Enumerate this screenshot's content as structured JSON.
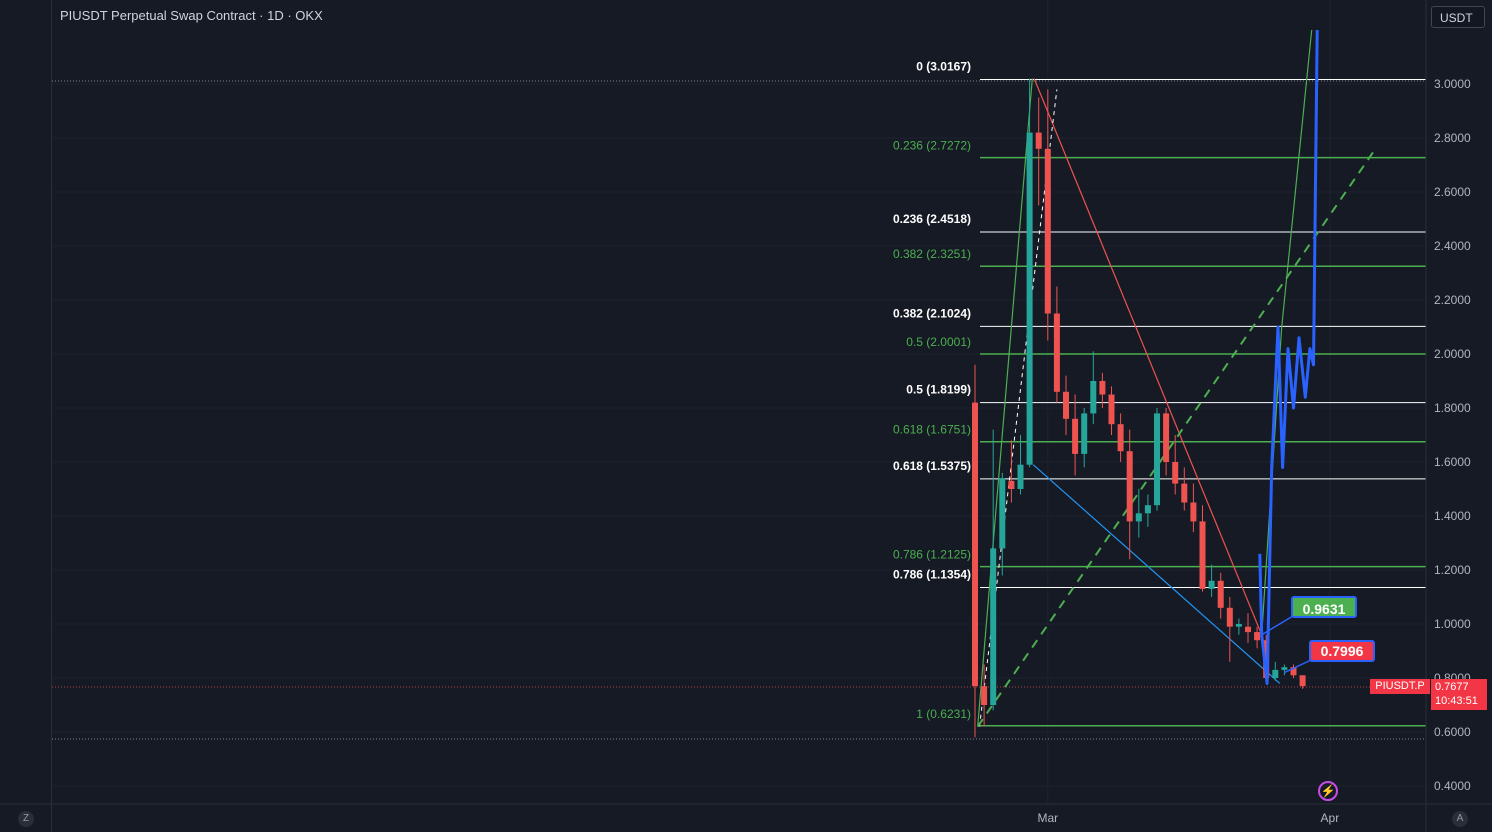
{
  "header": {
    "title": "PIUSDT Perpetual Swap Contract · 1D · OKX",
    "currency": "USDT"
  },
  "corners": {
    "bottom_left": "Z",
    "bottom_right": "A"
  },
  "price_tag": {
    "symbol": "PIUSDT.P",
    "price": "0.7677",
    "countdown": "10:43:51"
  },
  "labels": {
    "green": "0.9631",
    "red": "0.7996"
  },
  "colors": {
    "background": "#161a25",
    "bull": "#26a69a",
    "bear": "#ef5350",
    "fib_green": "#4caf50",
    "fib_white": "#ffffff",
    "blue": "#2962ff"
  },
  "chart_data": {
    "type": "candlestick",
    "ylim": [
      0.35,
      3.1
    ],
    "y_ticks": [
      "0.4000",
      "0.6000",
      "0.8000",
      "1.0000",
      "1.2000",
      "1.4000",
      "1.6000",
      "1.8000",
      "2.0000",
      "2.2000",
      "2.4000",
      "2.6000",
      "2.8000",
      "3.0000"
    ],
    "x_ticks": [
      {
        "label": "Mar",
        "day": 8
      },
      {
        "label": "Apr",
        "day": 39
      }
    ],
    "candles": [
      {
        "o": 1.82,
        "h": 1.96,
        "l": 0.58,
        "c": 0.77
      },
      {
        "o": 0.77,
        "h": 0.85,
        "l": 0.62,
        "c": 0.7
      },
      {
        "o": 0.7,
        "h": 1.72,
        "l": 0.68,
        "c": 1.28
      },
      {
        "o": 1.28,
        "h": 1.56,
        "l": 1.18,
        "c": 1.54
      },
      {
        "o": 1.53,
        "h": 1.68,
        "l": 1.45,
        "c": 1.5
      },
      {
        "o": 1.5,
        "h": 1.7,
        "l": 1.48,
        "c": 1.59
      },
      {
        "o": 1.59,
        "h": 3.02,
        "l": 1.58,
        "c": 2.82
      },
      {
        "o": 2.82,
        "h": 2.95,
        "l": 2.55,
        "c": 2.76
      },
      {
        "o": 2.76,
        "h": 2.98,
        "l": 2.05,
        "c": 2.15
      },
      {
        "o": 2.15,
        "h": 2.25,
        "l": 1.82,
        "c": 1.86
      },
      {
        "o": 1.86,
        "h": 1.92,
        "l": 1.7,
        "c": 1.76
      },
      {
        "o": 1.76,
        "h": 1.85,
        "l": 1.55,
        "c": 1.63
      },
      {
        "o": 1.63,
        "h": 1.8,
        "l": 1.58,
        "c": 1.78
      },
      {
        "o": 1.78,
        "h": 2.01,
        "l": 1.74,
        "c": 1.9
      },
      {
        "o": 1.9,
        "h": 1.93,
        "l": 1.8,
        "c": 1.85
      },
      {
        "o": 1.85,
        "h": 1.88,
        "l": 1.7,
        "c": 1.74
      },
      {
        "o": 1.74,
        "h": 1.78,
        "l": 1.6,
        "c": 1.64
      },
      {
        "o": 1.64,
        "h": 1.72,
        "l": 1.24,
        "c": 1.38
      },
      {
        "o": 1.38,
        "h": 1.5,
        "l": 1.32,
        "c": 1.41
      },
      {
        "o": 1.41,
        "h": 1.48,
        "l": 1.36,
        "c": 1.44
      },
      {
        "o": 1.44,
        "h": 1.8,
        "l": 1.42,
        "c": 1.78
      },
      {
        "o": 1.78,
        "h": 1.8,
        "l": 1.55,
        "c": 1.6
      },
      {
        "o": 1.6,
        "h": 1.7,
        "l": 1.48,
        "c": 1.52
      },
      {
        "o": 1.52,
        "h": 1.58,
        "l": 1.42,
        "c": 1.45
      },
      {
        "o": 1.45,
        "h": 1.52,
        "l": 1.34,
        "c": 1.38
      },
      {
        "o": 1.38,
        "h": 1.44,
        "l": 1.12,
        "c": 1.13
      },
      {
        "o": 1.13,
        "h": 1.22,
        "l": 1.1,
        "c": 1.16
      },
      {
        "o": 1.16,
        "h": 1.19,
        "l": 1.02,
        "c": 1.06
      },
      {
        "o": 1.06,
        "h": 1.1,
        "l": 0.86,
        "c": 0.99
      },
      {
        "o": 0.99,
        "h": 1.02,
        "l": 0.96,
        "c": 1.0
      },
      {
        "o": 0.99,
        "h": 1.04,
        "l": 0.93,
        "c": 0.97
      },
      {
        "o": 0.97,
        "h": 0.99,
        "l": 0.91,
        "c": 0.94
      },
      {
        "o": 0.94,
        "h": 0.96,
        "l": 0.79,
        "c": 0.8
      },
      {
        "o": 0.8,
        "h": 0.86,
        "l": 0.79,
        "c": 0.83
      },
      {
        "o": 0.83,
        "h": 0.85,
        "l": 0.81,
        "c": 0.84
      },
      {
        "o": 0.84,
        "h": 0.85,
        "l": 0.8,
        "c": 0.81
      },
      {
        "o": 0.81,
        "h": 0.81,
        "l": 0.76,
        "c": 0.77
      }
    ],
    "fib_levels_green": [
      {
        "label": "0.236 (2.7272)",
        "value": 2.7272
      },
      {
        "label": "0.382 (2.3251)",
        "value": 2.3251
      },
      {
        "label": "0.5 (2.0001)",
        "value": 2.0001
      },
      {
        "label": "0.618 (1.6751)",
        "value": 1.6751
      },
      {
        "label": "0.786 (1.2125)",
        "value": 1.2125
      },
      {
        "label": "1 (0.6231)",
        "value": 0.6231
      }
    ],
    "fib_levels_white": [
      {
        "label": "0 (3.0167)",
        "value": 3.0167
      },
      {
        "label": "0.236 (2.4518)",
        "value": 2.4518
      },
      {
        "label": "0.382 (2.1024)",
        "value": 2.1024
      },
      {
        "label": "0.5 (1.8199)",
        "value": 1.8199
      },
      {
        "label": "0.618 (1.5375)",
        "value": 1.5375
      },
      {
        "label": "0.786 (1.1354)",
        "value": 1.1354
      }
    ],
    "trend_lines": [
      {
        "name": "green-leg-down",
        "color": "#4caf50",
        "points": [
          [
            0.3,
            0.62
          ],
          [
            6.3,
            3.02
          ]
        ]
      },
      {
        "name": "red-trendline",
        "color": "#ef5350",
        "points": [
          [
            6.5,
            3.02
          ],
          [
            31.5,
            0.96
          ]
        ]
      },
      {
        "name": "blue-trendline",
        "color": "#2196f3",
        "points": [
          [
            6.4,
            1.59
          ],
          [
            33.5,
            0.78
          ]
        ]
      },
      {
        "name": "green-up-leg",
        "color": "#4caf50",
        "points": [
          [
            31.5,
            0.96
          ],
          [
            33.7,
            2.1
          ],
          [
            37.0,
            3.2
          ]
        ]
      }
    ],
    "dashed_lines": [
      {
        "name": "white-dashed",
        "color": "#ffffff",
        "points": [
          [
            0.5,
            0.62
          ],
          [
            9.0,
            2.98
          ]
        ]
      },
      {
        "name": "green-dashed",
        "color": "#4caf50",
        "points": [
          [
            0.3,
            0.62
          ],
          [
            43.8,
            2.75
          ]
        ]
      }
    ],
    "projection": [
      [
        31.3,
        1.26
      ],
      [
        31.5,
        0.96
      ],
      [
        32.1,
        0.78
      ],
      [
        32.6,
        1.58
      ],
      [
        33.3,
        2.1
      ],
      [
        33.8,
        1.58
      ],
      [
        34.4,
        2.02
      ],
      [
        35.0,
        1.8
      ],
      [
        35.6,
        2.06
      ],
      [
        36.3,
        1.84
      ],
      [
        36.8,
        2.02
      ],
      [
        37.2,
        1.96
      ],
      [
        37.6,
        3.2
      ]
    ]
  }
}
